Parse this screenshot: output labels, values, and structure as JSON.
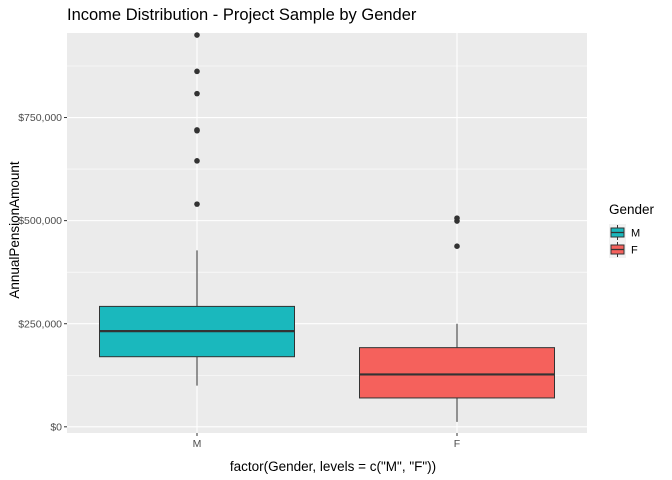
{
  "chart_data": {
    "type": "boxplot",
    "title": "Income Distribution - Project Sample by Gender",
    "xlabel": "factor(Gender, levels = c(\"M\", \"F\"))",
    "ylabel": "AnnualPensionAmount",
    "categories": [
      "M",
      "F"
    ],
    "ylim": [
      -15000,
      955000
    ],
    "y_ticks": [
      {
        "value": 0,
        "label": "$0"
      },
      {
        "value": 250000,
        "label": "$250,000"
      },
      {
        "value": 500000,
        "label": "$500,000"
      },
      {
        "value": 750000,
        "label": "$750,000"
      }
    ],
    "grid": true,
    "legend": {
      "title": "Gender",
      "placement": "right",
      "entries": [
        {
          "label": "M",
          "color": "#1ab8bd"
        },
        {
          "label": "F",
          "color": "#f5615c"
        }
      ]
    },
    "series": [
      {
        "category": "M",
        "color": "#1ab8bd",
        "whisker_low": 100000,
        "q1": 170000,
        "median": 232000,
        "q3": 292000,
        "whisker_high": 428000,
        "outliers": [
          540000,
          645000,
          718000,
          720000,
          808000,
          862000,
          950000
        ]
      },
      {
        "category": "F",
        "color": "#f5615c",
        "whisker_low": 12000,
        "q1": 70000,
        "median": 127000,
        "q3": 192000,
        "whisker_high": 250000,
        "outliers": [
          438000,
          499000,
          506000
        ]
      }
    ]
  }
}
